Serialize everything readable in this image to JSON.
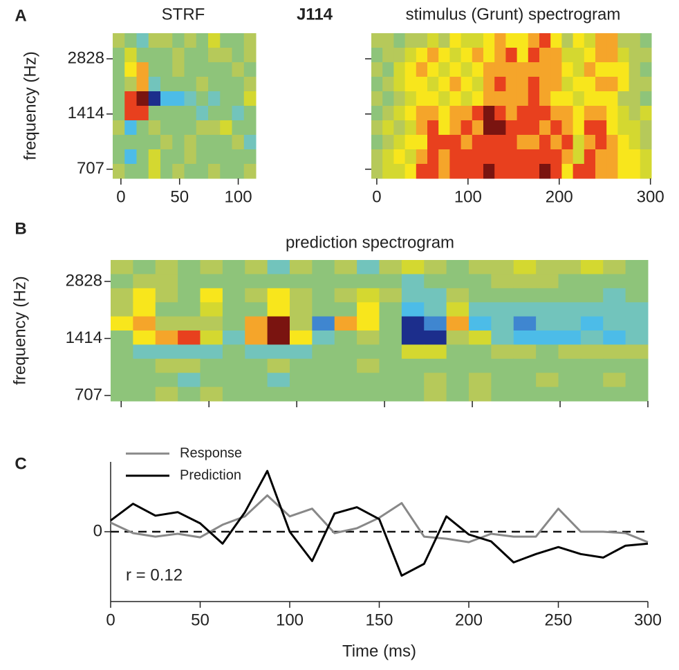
{
  "figure_title": "J114",
  "chart_data": [
    {
      "type": "heatmap",
      "panel_label": "A",
      "title": "STRF",
      "ylabel": "frequency (Hz)",
      "xlim": [
        -7,
        115
      ],
      "xticks": [
        0,
        50,
        100
      ],
      "ylim": [
        630,
        3900
      ],
      "yscale": "log",
      "yticks": [
        707,
        1414,
        2828
      ],
      "clim": [
        0,
        10
      ],
      "colormap": [
        "#1c2e8c",
        "#3f86d0",
        "#4cbce8",
        "#72c4bc",
        "#8ec47a",
        "#b6c95a",
        "#d4d830",
        "#f8e61c",
        "#f5a52a",
        "#e8401e",
        "#7a1410"
      ],
      "values": [
        [
          5,
          4,
          3,
          5,
          5,
          4,
          5,
          4,
          6,
          4,
          4,
          5
        ],
        [
          4,
          6,
          4,
          4,
          4,
          5,
          4,
          4,
          5,
          5,
          4,
          5
        ],
        [
          4,
          7,
          8,
          4,
          4,
          5,
          4,
          4,
          4,
          4,
          5,
          4
        ],
        [
          4,
          5,
          8,
          3,
          4,
          4,
          4,
          5,
          4,
          4,
          4,
          5
        ],
        [
          4,
          9,
          10,
          0,
          2,
          2,
          3,
          4,
          3,
          4,
          4,
          6
        ],
        [
          4,
          9,
          9,
          4,
          4,
          4,
          4,
          3,
          4,
          4,
          3,
          4
        ],
        [
          5,
          2,
          4,
          5,
          4,
          4,
          4,
          5,
          5,
          6,
          4,
          4
        ],
        [
          4,
          4,
          4,
          4,
          5,
          4,
          5,
          4,
          4,
          4,
          5,
          3
        ],
        [
          4,
          2,
          4,
          6,
          4,
          4,
          5,
          4,
          4,
          4,
          4,
          4
        ],
        [
          5,
          4,
          4,
          6,
          4,
          5,
          4,
          4,
          5,
          4,
          4,
          5
        ]
      ]
    },
    {
      "type": "heatmap",
      "title": "stimulus (Grunt) spectrogram",
      "xlim": [
        -6,
        301
      ],
      "xticks": [
        0,
        100,
        200,
        300
      ],
      "ylim": [
        630,
        3900
      ],
      "yscale": "log",
      "yticks": [
        707,
        1414,
        2828
      ],
      "ytick_labels": false,
      "clim": [
        0,
        10
      ],
      "colormap": [
        "#1c2e8c",
        "#3f86d0",
        "#4cbce8",
        "#72c4bc",
        "#8ec47a",
        "#b6c95a",
        "#d4d830",
        "#f8e61c",
        "#f5a52a",
        "#e8401e",
        "#7a1410"
      ],
      "values": [
        [
          5,
          5,
          4,
          5,
          5,
          6,
          5,
          7,
          6,
          6,
          7,
          8,
          7,
          7,
          8,
          9,
          7,
          5,
          7,
          6,
          8,
          8,
          5,
          5,
          4
        ],
        [
          4,
          5,
          5,
          6,
          7,
          8,
          7,
          6,
          7,
          8,
          7,
          8,
          9,
          7,
          9,
          8,
          8,
          6,
          6,
          7,
          8,
          8,
          6,
          5,
          5
        ],
        [
          5,
          4,
          6,
          7,
          8,
          7,
          6,
          7,
          6,
          7,
          8,
          8,
          8,
          8,
          8,
          8,
          8,
          7,
          6,
          8,
          7,
          7,
          7,
          5,
          4
        ],
        [
          4,
          5,
          6,
          7,
          7,
          6,
          7,
          8,
          7,
          6,
          8,
          9,
          8,
          8,
          9,
          8,
          8,
          6,
          7,
          7,
          8,
          8,
          7,
          5,
          5
        ],
        [
          5,
          4,
          5,
          6,
          7,
          7,
          6,
          7,
          6,
          7,
          8,
          8,
          8,
          8,
          9,
          8,
          7,
          7,
          6,
          7,
          7,
          7,
          5,
          5,
          4
        ],
        [
          4,
          5,
          6,
          7,
          8,
          8,
          7,
          8,
          8,
          9,
          10,
          9,
          8,
          9,
          9,
          9,
          8,
          8,
          7,
          8,
          8,
          7,
          6,
          5,
          6
        ],
        [
          5,
          6,
          5,
          6,
          8,
          9,
          7,
          8,
          9,
          8,
          10,
          10,
          9,
          9,
          9,
          8,
          9,
          8,
          7,
          9,
          9,
          7,
          6,
          6,
          5
        ],
        [
          4,
          5,
          6,
          7,
          7,
          9,
          9,
          9,
          8,
          9,
          9,
          9,
          9,
          8,
          8,
          9,
          8,
          9,
          6,
          8,
          9,
          8,
          7,
          6,
          5
        ],
        [
          5,
          6,
          7,
          6,
          8,
          9,
          8,
          9,
          9,
          9,
          9,
          9,
          9,
          9,
          9,
          9,
          9,
          8,
          6,
          9,
          8,
          8,
          7,
          7,
          6
        ],
        [
          5,
          6,
          6,
          7,
          9,
          9,
          8,
          9,
          9,
          9,
          10,
          9,
          9,
          9,
          9,
          10,
          9,
          7,
          9,
          9,
          8,
          8,
          7,
          7,
          6
        ]
      ]
    },
    {
      "type": "heatmap",
      "panel_label": "B",
      "title": "prediction spectrogram",
      "ylabel": "frequency (Hz)",
      "xlim": [
        -6,
        300
      ],
      "xticks": [
        0,
        50,
        100,
        150,
        200,
        250,
        300
      ],
      "xtick_labels": false,
      "ylim": [
        661,
        3670
      ],
      "yscale": "log",
      "yticks": [
        707,
        1414,
        2828
      ],
      "clim": [
        0,
        10
      ],
      "colormap": [
        "#1c2e8c",
        "#3f86d0",
        "#4cbce8",
        "#72c4bc",
        "#8ec47a",
        "#b6c95a",
        "#d4d830",
        "#f8e61c",
        "#f5a52a",
        "#e8401e",
        "#7a1410"
      ],
      "values": [
        [
          5,
          4,
          5,
          4,
          5,
          4,
          5,
          3,
          5,
          4,
          5,
          3,
          5,
          6,
          5,
          4,
          5,
          5,
          6,
          5,
          5,
          6,
          5,
          4
        ],
        [
          4,
          5,
          5,
          4,
          4,
          4,
          4,
          4,
          4,
          4,
          4,
          4,
          4,
          3,
          4,
          4,
          4,
          5,
          5,
          5,
          4,
          4,
          4,
          4
        ],
        [
          5,
          7,
          5,
          4,
          7,
          4,
          5,
          7,
          5,
          4,
          5,
          6,
          5,
          3,
          3,
          5,
          4,
          4,
          4,
          4,
          4,
          4,
          3,
          4
        ],
        [
          5,
          7,
          4,
          4,
          6,
          4,
          4,
          7,
          5,
          4,
          4,
          7,
          4,
          2,
          3,
          6,
          3,
          3,
          3,
          3,
          3,
          3,
          3,
          3
        ],
        [
          7,
          8,
          5,
          5,
          5,
          4,
          8,
          10,
          5,
          1,
          8,
          7,
          4,
          0,
          1,
          8,
          2,
          3,
          1,
          3,
          3,
          2,
          3,
          3
        ],
        [
          4,
          7,
          8,
          9,
          6,
          3,
          8,
          10,
          7,
          3,
          4,
          5,
          4,
          0,
          0,
          5,
          6,
          3,
          2,
          2,
          2,
          3,
          2,
          3
        ],
        [
          4,
          3,
          3,
          3,
          3,
          4,
          3,
          3,
          3,
          4,
          4,
          4,
          4,
          6,
          6,
          4,
          4,
          5,
          5,
          4,
          5,
          5,
          5,
          5
        ],
        [
          4,
          4,
          5,
          5,
          4,
          4,
          4,
          5,
          4,
          4,
          4,
          5,
          4,
          4,
          4,
          4,
          4,
          4,
          4,
          4,
          4,
          4,
          4,
          4
        ],
        [
          4,
          4,
          4,
          3,
          4,
          4,
          4,
          3,
          4,
          4,
          4,
          4,
          4,
          4,
          5,
          4,
          5,
          4,
          4,
          5,
          4,
          4,
          5,
          4
        ],
        [
          4,
          4,
          5,
          4,
          5,
          4,
          4,
          4,
          4,
          4,
          4,
          4,
          4,
          4,
          5,
          4,
          5,
          4,
          4,
          4,
          4,
          4,
          4,
          4
        ]
      ]
    },
    {
      "type": "line",
      "panel_label": "C",
      "xlabel": "Time (ms)",
      "annotation": "r = 0.12",
      "xlim": [
        0,
        300
      ],
      "xticks": [
        0,
        50,
        100,
        150,
        200,
        250,
        300
      ],
      "ylim": [
        -1,
        1
      ],
      "yticks": [
        0
      ],
      "zero_line": true,
      "legend": "upper-left",
      "x": [
        0,
        12.5,
        25,
        37.5,
        50,
        62.5,
        75,
        87.5,
        100,
        112.5,
        125,
        137.5,
        150,
        162.5,
        175,
        187.5,
        200,
        212.5,
        225,
        237.5,
        250,
        262.5,
        275,
        287.5,
        300
      ],
      "series": [
        {
          "name": "Response",
          "color": "#888888",
          "values": [
            0.13,
            -0.02,
            -0.07,
            -0.03,
            -0.08,
            0.1,
            0.22,
            0.52,
            0.22,
            0.33,
            -0.02,
            0.05,
            0.2,
            0.41,
            -0.07,
            -0.1,
            -0.15,
            -0.03,
            -0.07,
            -0.07,
            0.33,
            0,
            0,
            -0.02,
            -0.15
          ]
        },
        {
          "name": "Prediction",
          "color": "#000000",
          "values": [
            0.16,
            0.4,
            0.23,
            0.28,
            0.12,
            -0.17,
            0.28,
            0.87,
            0,
            -0.42,
            0.26,
            0.35,
            0.18,
            -0.63,
            -0.46,
            0.22,
            -0.04,
            -0.14,
            -0.44,
            -0.32,
            -0.22,
            -0.32,
            -0.37,
            -0.2,
            -0.17
          ]
        }
      ]
    }
  ]
}
